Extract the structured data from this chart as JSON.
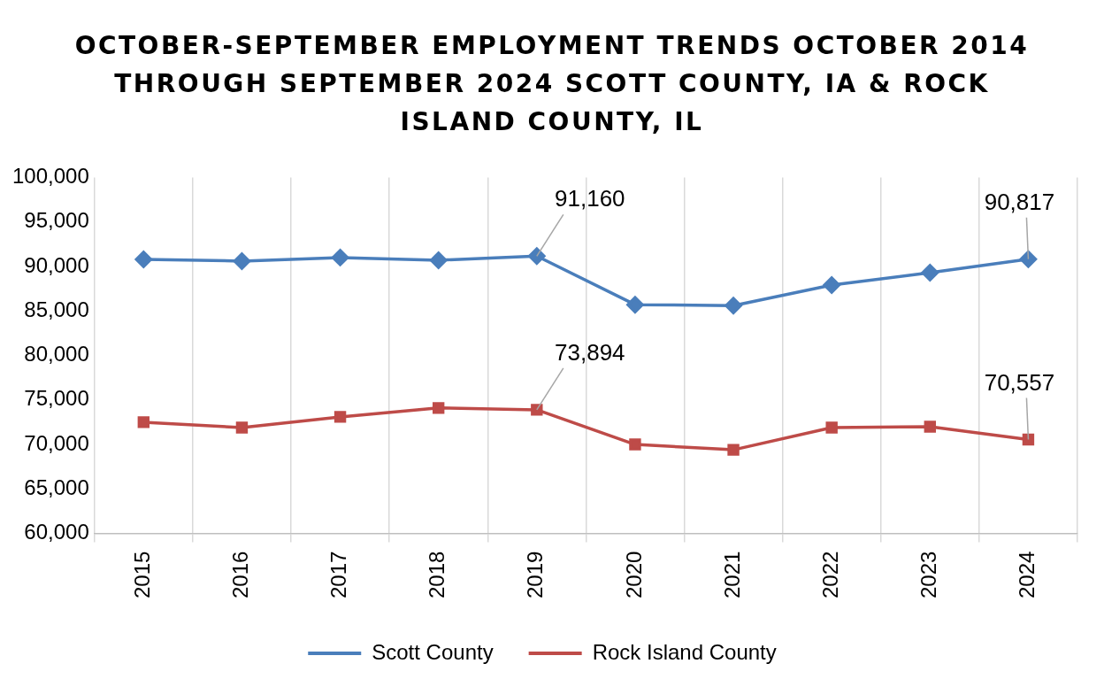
{
  "chart_data": {
    "type": "line",
    "title": "OCTOBER-SEPTEMBER EMPLOYMENT TRENDS OCTOBER 2014 THROUGH SEPTEMBER 2024 SCOTT COUNTY, IA & ROCK ISLAND COUNTY, IL",
    "categories": [
      "2015",
      "2016",
      "2017",
      "2018",
      "2019",
      "2020",
      "2021",
      "2022",
      "2023",
      "2024"
    ],
    "series": [
      {
        "name": "Scott County",
        "color": "#4a7ebb",
        "marker": "diamond",
        "values": [
          90800,
          90600,
          91000,
          90700,
          91160,
          85700,
          85600,
          87900,
          89300,
          90817
        ],
        "value_labels": [
          null,
          null,
          null,
          null,
          "91,160",
          null,
          null,
          null,
          null,
          "90,817"
        ]
      },
      {
        "name": "Rock Island County",
        "color": "#be4b48",
        "marker": "square",
        "values": [
          72500,
          71900,
          73100,
          74100,
          73894,
          70000,
          69400,
          71900,
          72000,
          70557
        ],
        "value_labels": [
          null,
          null,
          null,
          null,
          "73,894",
          null,
          null,
          null,
          null,
          "70,557"
        ]
      }
    ],
    "ylim": [
      60000,
      100000
    ],
    "yticks": [
      {
        "value": 60000,
        "label": "60,000"
      },
      {
        "value": 65000,
        "label": "65,000"
      },
      {
        "value": 70000,
        "label": "70,000"
      },
      {
        "value": 75000,
        "label": "75,000"
      },
      {
        "value": 80000,
        "label": "80,000"
      },
      {
        "value": 85000,
        "label": "85,000"
      },
      {
        "value": 90000,
        "label": "90,000"
      },
      {
        "value": 95000,
        "label": "95,000"
      },
      {
        "value": 100000,
        "label": "100,000"
      }
    ],
    "grid": "x",
    "legend": "bottom",
    "line_style": "solid"
  }
}
